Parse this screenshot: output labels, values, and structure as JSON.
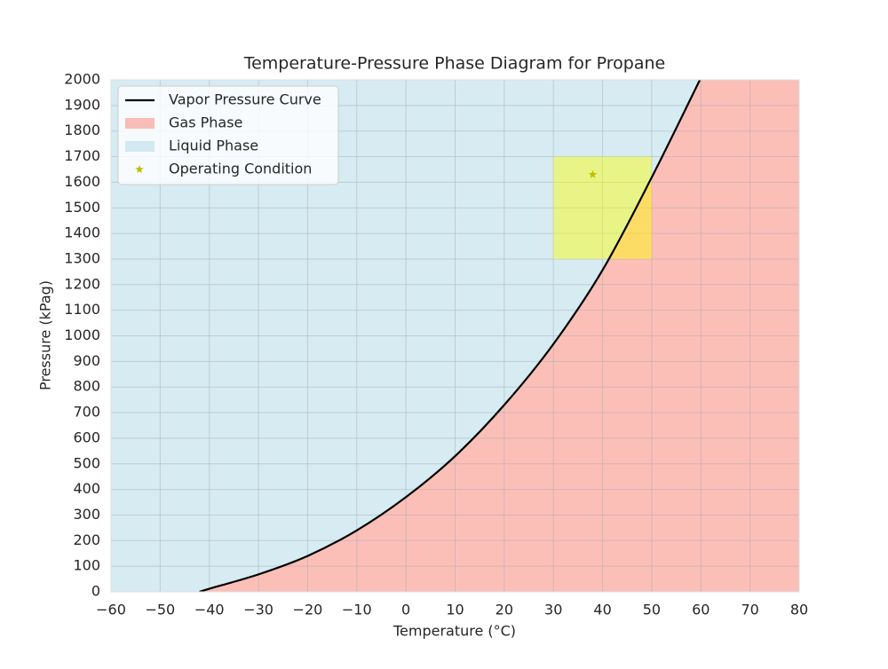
{
  "chart_data": {
    "type": "line",
    "title": "Temperature-Pressure Phase Diagram for Propane",
    "x_label": "Temperature (°C)",
    "y_label": "Pressure (kPag)",
    "xlim": [
      -60,
      80
    ],
    "ylim": [
      0,
      2000
    ],
    "xticks": [
      {
        "value": -60,
        "label": "−60"
      },
      {
        "value": -50,
        "label": "−50"
      },
      {
        "value": -40,
        "label": "−40"
      },
      {
        "value": -30,
        "label": "−30"
      },
      {
        "value": -20,
        "label": "−20"
      },
      {
        "value": -10,
        "label": "−10"
      },
      0,
      10,
      20,
      30,
      40,
      50,
      60,
      70,
      80
    ],
    "yticks": [
      0,
      100,
      200,
      300,
      400,
      500,
      600,
      700,
      800,
      900,
      1000,
      1100,
      1200,
      1300,
      1400,
      1500,
      1600,
      1700,
      1800,
      1900,
      2000
    ],
    "grid": true,
    "legend": "upper left",
    "series": [
      {
        "name": "Vapor Pressure Curve",
        "color": "#000000",
        "x": [
          -42,
          -40,
          -30,
          -20,
          -10,
          0,
          10,
          20,
          30,
          40,
          50,
          59.8
        ],
        "values": [
          0,
          12,
          68,
          140,
          240,
          370,
          530,
          730,
          968,
          1257,
          1619,
          2000
        ]
      },
      {
        "name": "Gas Phase",
        "color": "#fa8072",
        "fill": "below",
        "opacity": 0.5
      },
      {
        "name": "Liquid Phase",
        "color": "#add8e6",
        "fill": "above",
        "opacity": 0.5
      },
      {
        "name": "Operating Condition",
        "color": "#bfbf00",
        "marker": "star",
        "x": [
          38
        ],
        "values": [
          1630
        ]
      }
    ],
    "operating_region": {
      "xlim": [
        30,
        50
      ],
      "ylim": [
        1300,
        1700
      ],
      "color": "#ffff00",
      "opacity": 0.45
    }
  }
}
